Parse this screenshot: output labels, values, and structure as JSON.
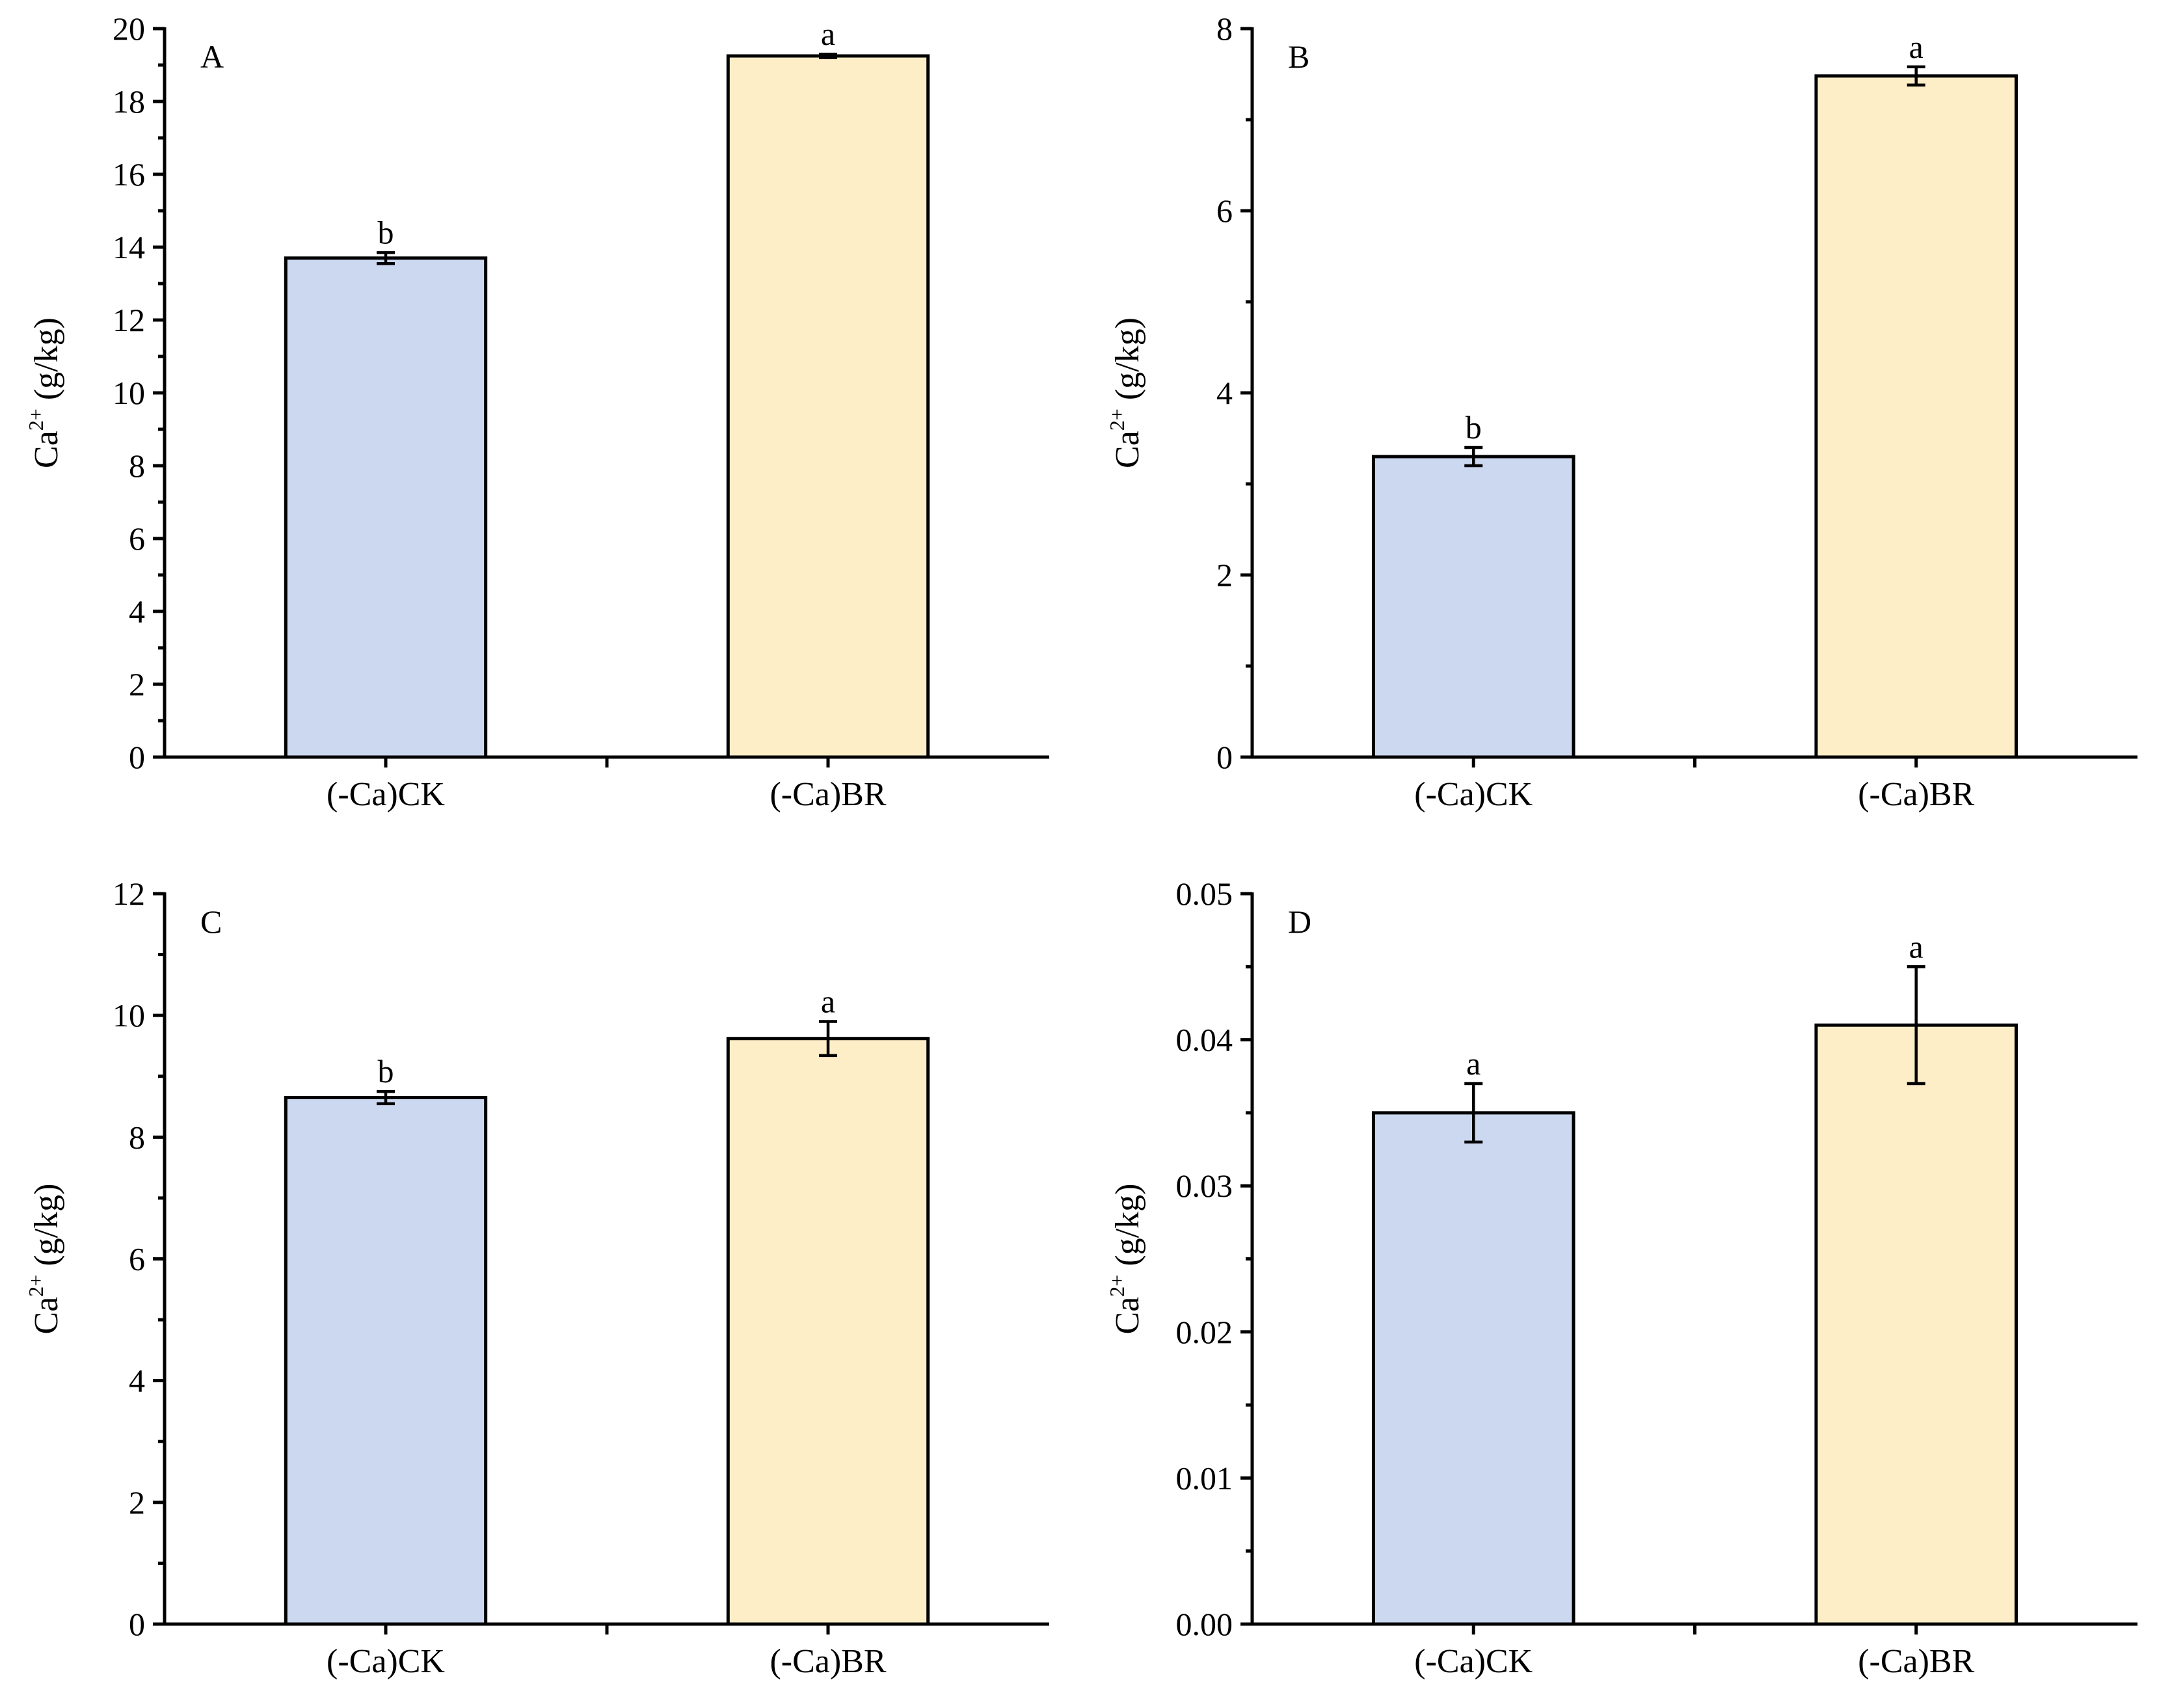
{
  "colors": {
    "ck": "#ccd7f0",
    "br": "#fdeec8"
  },
  "chart_data": [
    {
      "type": "bar",
      "panel": "A",
      "ylabel": "Ca",
      "ylabel_sup": "2+",
      "ylabel_unit": " (g/kg)",
      "ylim": [
        0,
        20
      ],
      "yticks": [
        0,
        2,
        4,
        6,
        8,
        10,
        12,
        14,
        16,
        18,
        20
      ],
      "categories": [
        "(-Ca)CK",
        "(-Ca)BR"
      ],
      "values": [
        13.7,
        19.25
      ],
      "errors": [
        0.15,
        0.05
      ],
      "significance": [
        "b",
        "a"
      ]
    },
    {
      "type": "bar",
      "panel": "B",
      "ylabel": "Ca",
      "ylabel_sup": "2+",
      "ylabel_unit": " (g/kg)",
      "ylim": [
        0,
        8
      ],
      "yticks": [
        0,
        2,
        4,
        6,
        8
      ],
      "categories": [
        "(-Ca)CK",
        "(-Ca)BR"
      ],
      "values": [
        3.3,
        7.48
      ],
      "errors": [
        0.1,
        0.1
      ],
      "significance": [
        "b",
        "a"
      ]
    },
    {
      "type": "bar",
      "panel": "C",
      "ylabel": "Ca",
      "ylabel_sup": "2+",
      "ylabel_unit": " (g/kg)",
      "ylim": [
        0,
        12
      ],
      "yticks": [
        0,
        2,
        4,
        6,
        8,
        10,
        12
      ],
      "categories": [
        "(-Ca)CK",
        "(-Ca)BR"
      ],
      "values": [
        8.65,
        9.62
      ],
      "errors": [
        0.1,
        0.28
      ],
      "significance": [
        "b",
        "a"
      ]
    },
    {
      "type": "bar",
      "panel": "D",
      "ylabel": "Ca",
      "ylabel_sup": "2+",
      "ylabel_unit": " (g/kg)",
      "ylim": [
        0,
        0.05
      ],
      "yticks": [
        0.0,
        0.01,
        0.02,
        0.03,
        0.04,
        0.05
      ],
      "ytick_labels": [
        "0.00",
        "0.01",
        "0.02",
        "0.03",
        "0.04",
        "0.05"
      ],
      "categories": [
        "(-Ca)CK",
        "(-Ca)BR"
      ],
      "values": [
        0.035,
        0.041
      ],
      "errors": [
        0.002,
        0.004
      ],
      "significance": [
        "a",
        "a"
      ]
    }
  ]
}
